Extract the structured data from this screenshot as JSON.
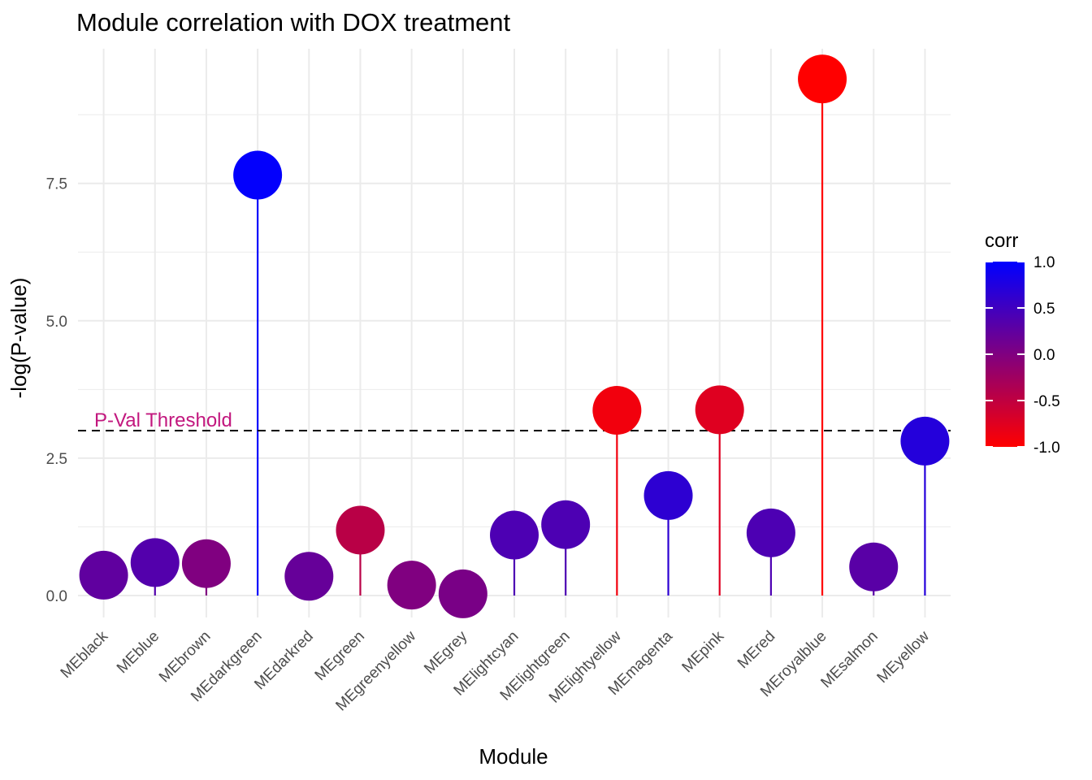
{
  "chart_data": {
    "type": "lollipop",
    "title": "Module correlation with DOX treatment",
    "xlabel": "Module",
    "ylabel": "-log(P-value)",
    "categories": [
      "MEblack",
      "MEblue",
      "MEbrown",
      "MEdarkgreen",
      "MEdarkred",
      "MEgreen",
      "MEgreenyellow",
      "MEgrey",
      "MElightcyan",
      "MElightgreen",
      "MElightyellow",
      "MEmagenta",
      "MEpink",
      "MEred",
      "MEroyalblue",
      "MEsalmon",
      "MEyellow"
    ],
    "values": [
      0.37,
      0.6,
      0.58,
      7.65,
      0.35,
      1.19,
      0.19,
      0.03,
      1.1,
      1.29,
      3.37,
      1.82,
      3.38,
      1.14,
      9.4,
      0.52,
      2.81
    ],
    "corr": [
      0.25,
      0.35,
      0.0,
      0.98,
      0.2,
      -0.45,
      0.0,
      0.05,
      0.4,
      0.4,
      -0.9,
      0.65,
      -0.75,
      0.4,
      -1.0,
      0.3,
      0.72
    ],
    "ylim": [
      -0.4,
      9.95
    ],
    "yticks": [
      0.0,
      2.5,
      5.0,
      7.5
    ],
    "ytick_labels": [
      "0.0",
      "2.5",
      "5.0",
      "7.5"
    ],
    "grid": true,
    "threshold": {
      "value": 3.0,
      "label": "P-Val Threshold",
      "color": "#C2177E"
    },
    "legend": {
      "title": "corr",
      "position": "right",
      "ticks": [
        1.0,
        0.5,
        0.0,
        -0.5,
        -1.0
      ],
      "tick_labels": [
        "1.0",
        "0.5",
        "0.0",
        "-0.5",
        "-1.0"
      ],
      "low_color": "#FF0000",
      "high_color": "#0000FF"
    }
  }
}
